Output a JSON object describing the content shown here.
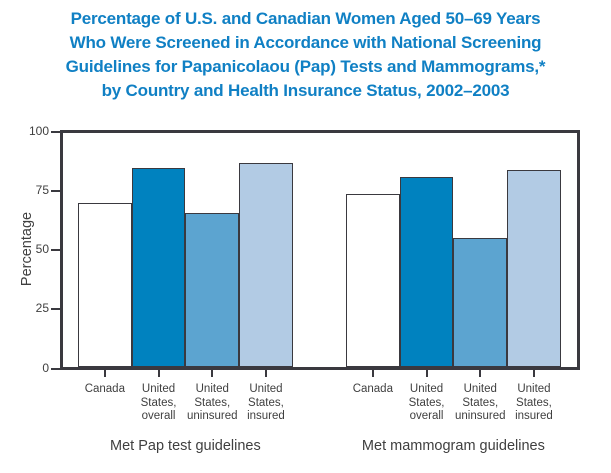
{
  "title_lines": [
    "Percentage of U.S. and Canadian Women Aged 50–69 Years",
    "Who Were Screened in Accordance with National Screening",
    "Guidelines for Papanicolaou (Pap) Tests and Mammograms,*",
    "by Country and Health Insurance Status, 2002–2003"
  ],
  "colors": {
    "title": "#1080C4",
    "axis": "#3A393F",
    "text": "#3F3F3F",
    "bars": [
      "#FFFFFF",
      "#0082BF",
      "#5CA4D0",
      "#B2CBE4"
    ]
  },
  "chart_data": {
    "type": "bar",
    "title": "Percentage of U.S. and Canadian Women Aged 50–69 Years Who Were Screened in Accordance with National Screening Guidelines for Papanicolaou (Pap) Tests and Mammograms,* by Country and Health Insurance Status, 2002–2003",
    "ylabel": "Percentage",
    "xlabel": "",
    "ylim": [
      0,
      100
    ],
    "yticks": [
      0,
      25,
      50,
      75,
      100
    ],
    "grid": false,
    "legend_position": "none",
    "categories": [
      "Canada",
      "United\nStates,\noverall",
      "United\nStates,\nuninsured",
      "United\nStates,\ninsured"
    ],
    "groups": [
      {
        "label": "Met Pap test guidelines",
        "values": [
          70,
          85,
          66,
          87
        ]
      },
      {
        "label": "Met mammogram guidelines",
        "values": [
          74,
          81,
          55,
          84
        ]
      }
    ],
    "bar_color_mapping": [
      "Canada: white",
      "United States, overall: dark blue",
      "United States, uninsured: medium blue",
      "United States, insured: light blue"
    ]
  }
}
